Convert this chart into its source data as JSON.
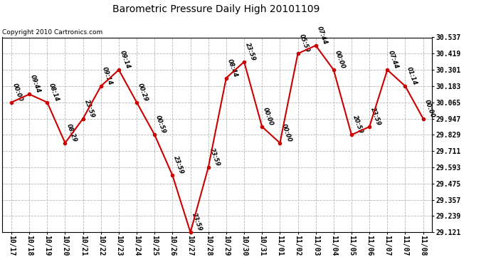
{
  "title": "Barometric Pressure Daily High 20101109",
  "copyright": "Copyright 2010 Cartronics.com",
  "x_labels": [
    "10/17",
    "10/18",
    "10/19",
    "10/20",
    "10/21",
    "10/22",
    "10/23",
    "10/24",
    "10/25",
    "10/26",
    "10/27",
    "10/28",
    "10/29",
    "10/30",
    "10/31",
    "11/01",
    "11/02",
    "11/03",
    "11/04",
    "11/05",
    "11/06",
    "11/07",
    "11/07",
    "11/08"
  ],
  "y_values": [
    30.065,
    30.124,
    30.065,
    29.77,
    29.947,
    30.183,
    30.301,
    30.065,
    29.829,
    29.534,
    29.121,
    29.593,
    30.242,
    30.36,
    29.888,
    29.77,
    30.419,
    30.478,
    30.301,
    29.829,
    29.888,
    30.301,
    30.183,
    29.947
  ],
  "time_labels": [
    "00:00",
    "09:44",
    "08:14",
    "08:29",
    "23:59",
    "09:14",
    "09:14",
    "00:29",
    "00:59",
    "23:59",
    "23:59",
    "23:59",
    "08:44",
    "23:59",
    "00:00",
    "00:00",
    "05:59",
    "07:44",
    "00:00",
    "20:59",
    "23:59",
    "07:44",
    "01:14",
    "00:00"
  ],
  "y_ticks": [
    29.121,
    29.239,
    29.357,
    29.475,
    29.593,
    29.711,
    29.829,
    29.947,
    30.065,
    30.183,
    30.301,
    30.419,
    30.537
  ],
  "y_min": 29.121,
  "y_max": 30.537,
  "line_color": "#cc0000",
  "marker_color": "#cc0000",
  "bg_color": "#ffffff",
  "grid_color": "#aaaaaa",
  "title_fontsize": 10,
  "copyright_fontsize": 6.5,
  "tick_fontsize": 7,
  "label_fontsize": 6
}
